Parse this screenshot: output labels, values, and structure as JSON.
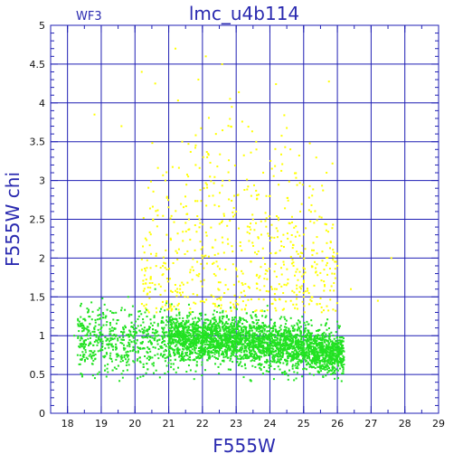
{
  "chart_data": {
    "type": "scatter",
    "title": "lmc_u4b114",
    "corner_label": "WF3",
    "xlabel": "F555W",
    "ylabel": "F555W  chi",
    "xlim": [
      17.5,
      29
    ],
    "ylim": [
      0,
      5
    ],
    "x_ticks": [
      18,
      19,
      20,
      21,
      22,
      23,
      24,
      25,
      26,
      27,
      28,
      29
    ],
    "y_ticks": [
      0,
      0.5,
      1,
      1.5,
      2,
      2.5,
      3,
      3.5,
      4,
      4.5,
      5
    ],
    "x_tick_labels": [
      "18",
      "19",
      "20",
      "21",
      "22",
      "23",
      "24",
      "25",
      "26",
      "27",
      "28",
      "29"
    ],
    "y_tick_labels": [
      "0",
      "0.5",
      "1",
      "1.5",
      "2",
      "2.5",
      "3",
      "3.5",
      "4",
      "4.5",
      "5"
    ],
    "grid": true,
    "colors": {
      "grid": "#1f1fb4",
      "axes": "#1f1fb4",
      "text": "#2a2ab0",
      "main_series": "#22e222",
      "outlier_series": "#ffff00"
    },
    "series": [
      {
        "color": "#22e222",
        "description_density": "dense cluster chi 0.5-1.5 at F555W 18.3-26.2, peak density F555W 21.5-25.5, chi ~0.8-1.0",
        "points": [
          [
            18.2,
            1.0
          ],
          [
            18.5,
            0.9
          ],
          [
            18.6,
            1.3
          ],
          [
            18.8,
            0.8
          ],
          [
            19.0,
            1.1
          ],
          [
            19.1,
            1.4
          ],
          [
            19.3,
            0.7
          ],
          [
            19.5,
            1.2
          ],
          [
            19.6,
            0.95
          ],
          [
            19.8,
            1.5
          ],
          [
            20.0,
            1.0
          ],
          [
            20.1,
            0.8
          ],
          [
            20.3,
            1.3
          ],
          [
            20.5,
            0.9
          ],
          [
            20.6,
            1.6
          ],
          [
            20.8,
            1.1
          ],
          [
            21.0,
            0.85
          ],
          [
            21.1,
            1.2
          ],
          [
            21.3,
            1.0
          ],
          [
            21.5,
            0.9
          ],
          [
            21.6,
            1.4
          ],
          [
            21.8,
            0.95
          ],
          [
            22.0,
            1.1
          ],
          [
            22.1,
            0.8
          ],
          [
            22.3,
            1.0
          ],
          [
            22.5,
            0.9
          ],
          [
            22.6,
            1.3
          ],
          [
            22.8,
            0.85
          ],
          [
            23.0,
            1.0
          ],
          [
            23.1,
            0.8
          ],
          [
            23.3,
            0.95
          ],
          [
            23.5,
            0.9
          ],
          [
            23.6,
            1.2
          ],
          [
            23.8,
            0.8
          ],
          [
            24.0,
            0.85
          ],
          [
            24.1,
            0.75
          ],
          [
            24.3,
            0.9
          ],
          [
            24.5,
            0.8
          ],
          [
            24.6,
            1.0
          ],
          [
            24.8,
            0.7
          ],
          [
            25.0,
            0.8
          ],
          [
            25.1,
            0.9
          ],
          [
            25.3,
            0.75
          ],
          [
            25.5,
            0.8
          ],
          [
            25.6,
            0.7
          ],
          [
            25.8,
            0.85
          ],
          [
            26.0,
            0.75
          ],
          [
            26.1,
            0.65
          ]
        ]
      },
      {
        "color": "#ffff00",
        "description_density": "sparse points chi 1.2-4.8 at F555W 19-27.6, mostly F555W 21-25",
        "points": [
          [
            18.8,
            3.85
          ],
          [
            19.6,
            3.7
          ],
          [
            20.2,
            4.4
          ],
          [
            20.6,
            4.25
          ],
          [
            20.9,
            3.0
          ],
          [
            21.2,
            4.7
          ],
          [
            21.4,
            3.5
          ],
          [
            21.6,
            2.5
          ],
          [
            21.8,
            3.2
          ],
          [
            22.0,
            2.0
          ],
          [
            22.2,
            2.8
          ],
          [
            22.4,
            3.6
          ],
          [
            22.6,
            2.2
          ],
          [
            22.8,
            3.0
          ],
          [
            23.0,
            2.6
          ],
          [
            23.2,
            1.8
          ],
          [
            23.4,
            2.4
          ],
          [
            23.6,
            3.4
          ],
          [
            23.8,
            2.0
          ],
          [
            24.0,
            2.8
          ],
          [
            24.2,
            1.6
          ],
          [
            24.4,
            2.3
          ],
          [
            24.7,
            1.9
          ],
          [
            25.0,
            1.5
          ],
          [
            25.3,
            2.1
          ],
          [
            25.6,
            1.7
          ],
          [
            26.0,
            1.9
          ],
          [
            26.4,
            1.6
          ],
          [
            27.6,
            2.0
          ],
          [
            27.2,
            1.45
          ],
          [
            24.9,
            2.6
          ],
          [
            22.1,
            4.6
          ]
        ]
      }
    ]
  }
}
